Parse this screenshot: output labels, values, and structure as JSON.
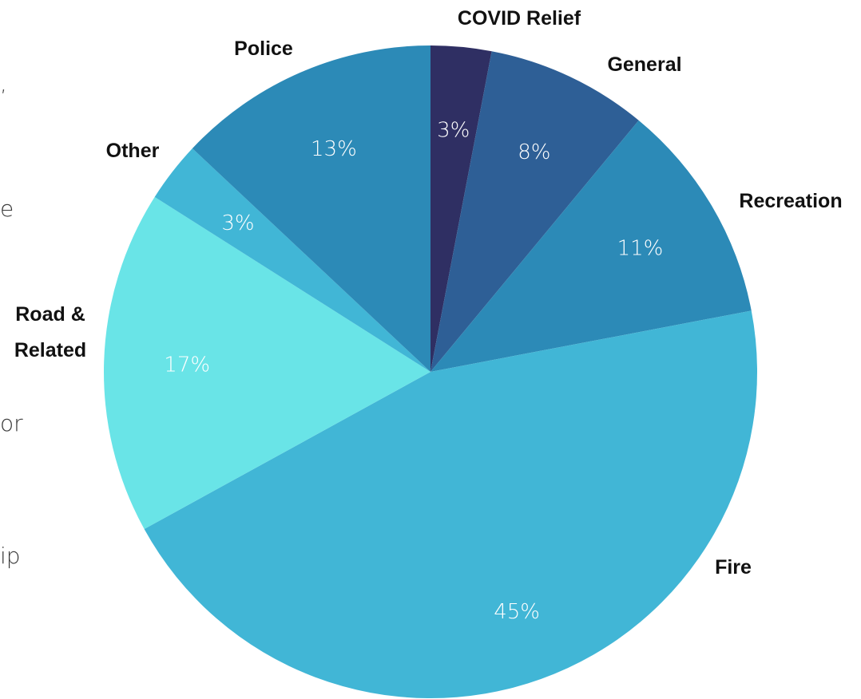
{
  "chart_data": {
    "type": "pie",
    "start_angle_deg": 0,
    "direction": "clockwise",
    "slices": [
      {
        "label": "COVID Relief",
        "value": 3,
        "value_label": "3%",
        "color": "#2f2f63"
      },
      {
        "label": "General",
        "value": 8,
        "value_label": "8%",
        "color": "#2e5f96"
      },
      {
        "label": "Recreation",
        "value": 11,
        "value_label": "11%",
        "color": "#2c8ab7"
      },
      {
        "label": "Fire",
        "value": 45,
        "value_label": "45%",
        "color": "#41b6d6"
      },
      {
        "label": "Road & Related",
        "label_lines": [
          "Road &",
          "Related"
        ],
        "value": 17,
        "value_label": "17%",
        "color": "#69e4e7"
      },
      {
        "label": "Other",
        "value": 3,
        "value_label": "3%",
        "color": "#41b6d6"
      },
      {
        "label": "Police",
        "value": 13,
        "value_label": "13%",
        "color": "#2c8ab7"
      }
    ]
  },
  "left_edge_text": [
    ",",
    "e",
    "or",
    "ip"
  ]
}
